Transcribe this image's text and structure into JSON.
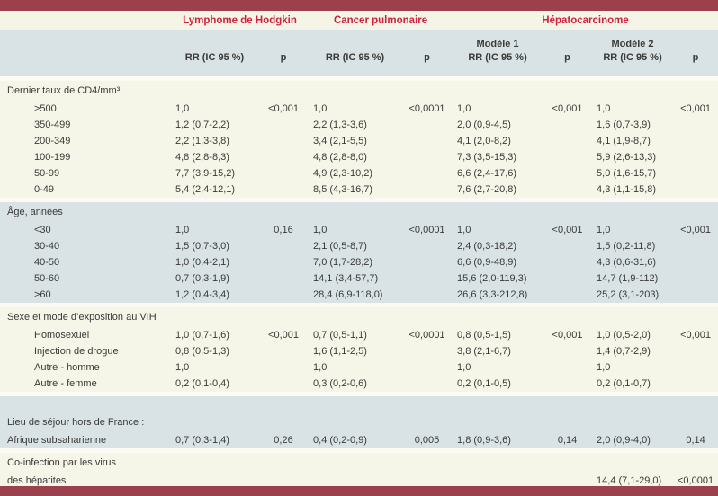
{
  "colors": {
    "border_bar": "#9c404e",
    "group_header_text": "#d01f3c",
    "section_cream": "#f6f6e8",
    "section_blue": "#d9e3e5",
    "body_text": "#3a3a38"
  },
  "table": {
    "header": {
      "groups": [
        "Lymphome de Hodgkin",
        "Cancer pulmonaire",
        "Hépatocarcinome"
      ],
      "model1": "Modèle 1",
      "model2": "Modèle 2",
      "rr": "RR (IC 95 %)",
      "p": "p"
    },
    "sections": [
      {
        "style": "cream",
        "header": "Dernier taux de CD4/mm³",
        "rows": [
          {
            "label": ">500",
            "indent": true,
            "c": [
              "1,0",
              "<0,001",
              "1,0",
              "<0,0001",
              "1,0",
              "<0,001",
              "1,0",
              "<0,001"
            ]
          },
          {
            "label": "350-499",
            "indent": true,
            "c": [
              "1,2 (0,7-2,2)",
              "",
              "2,2 (1,3-3,6)",
              "",
              "2,0 (0,9-4,5)",
              "",
              "1,6 (0,7-3,9)",
              ""
            ]
          },
          {
            "label": "200-349",
            "indent": true,
            "c": [
              "2,2 (1,3-3,8)",
              "",
              "3,4 (2,1-5,5)",
              "",
              "4,1 (2,0-8,2)",
              "",
              "4,1 (1,9-8,7)",
              ""
            ]
          },
          {
            "label": "100-199",
            "indent": true,
            "c": [
              "4,8 (2,8-8,3)",
              "",
              "4,8 (2,8-8,0)",
              "",
              "7,3 (3,5-15,3)",
              "",
              "5,9 (2,6-13,3)",
              ""
            ]
          },
          {
            "label": "50-99",
            "indent": true,
            "c": [
              "7,7 (3,9-15,2)",
              "",
              "4,9 (2,3-10,2)",
              "",
              "6,6 (2,4-17,6)",
              "",
              "5,0 (1,6-15,7)",
              ""
            ]
          },
          {
            "label": "0-49",
            "indent": true,
            "c": [
              "5,4 (2,4-12,1)",
              "",
              "8,5 (4,3-16,7)",
              "",
              "7,6 (2,7-20,8)",
              "",
              "4,3 (1,1-15,8)",
              ""
            ]
          }
        ]
      },
      {
        "style": "blue",
        "header": "Âge, années",
        "rows": [
          {
            "label": "<30",
            "indent": true,
            "c": [
              "1,0",
              "0,16",
              "1,0",
              "<0,0001",
              "1,0",
              "<0,001",
              "1,0",
              "<0,001"
            ]
          },
          {
            "label": "30-40",
            "indent": true,
            "c": [
              "1,5 (0,7-3,0)",
              "",
              "2,1 (0,5-8,7)",
              "",
              "2,4 (0,3-18,2)",
              "",
              "1,5 (0,2-11,8)",
              ""
            ]
          },
          {
            "label": "40-50",
            "indent": true,
            "c": [
              "1,0 (0,4-2,1)",
              "",
              "7,0 (1,7-28,2)",
              "",
              "6,6 (0,9-48,9)",
              "",
              "4,3 (0,6-31,6)",
              ""
            ]
          },
          {
            "label": "50-60",
            "indent": true,
            "c": [
              "0,7 (0,3-1,9)",
              "",
              "14,1 (3,4-57,7)",
              "",
              "15,6 (2,0-119,3)",
              "",
              "14,7 (1,9-112)",
              ""
            ]
          },
          {
            "label": ">60",
            "indent": true,
            "c": [
              "1,2 (0,4-3,4)",
              "",
              "28,4 (6,9-118,0)",
              "",
              "26,6 (3,3-212,8)",
              "",
              "25,2 (3,1-203)",
              ""
            ]
          }
        ]
      },
      {
        "style": "cream",
        "header": "Sexe et mode d’exposition au VIH",
        "rows": [
          {
            "label": "Homosexuel",
            "indent": true,
            "c": [
              "1,0 (0,7-1,6)",
              "<0,001",
              "0,7 (0,5-1,1)",
              "<0,0001",
              "0,8 (0,5-1,5)",
              "<0,001",
              "1,0 (0,5-2,0)",
              "<0,001"
            ]
          },
          {
            "label": "Injection de drogue",
            "indent": true,
            "c": [
              "0,8 (0,5-1,3)",
              "",
              "1,6 (1,1-2,5)",
              "",
              "3,8 (2,1-6,7)",
              "",
              "1,4 (0,7-2,9)",
              ""
            ]
          },
          {
            "label": "Autre - homme",
            "indent": true,
            "c": [
              "1,0",
              "",
              "1,0",
              "",
              "1,0",
              "",
              "1,0",
              ""
            ]
          },
          {
            "label": "Autre - femme",
            "indent": true,
            "c": [
              "0,2 (0,1-0,4)",
              "",
              "0,3 (0,2-0,6)",
              "",
              "0,2 (0,1-0,5)",
              "",
              "0,2 (0,1-0,7)",
              ""
            ]
          }
        ]
      },
      {
        "style": "blue",
        "pad_top": true,
        "header": "Lieu de séjour hors de France :",
        "rows": [
          {
            "label": "Afrique subsaharienne",
            "indent": false,
            "c": [
              "0,7 (0,3-1,4)",
              "0,26",
              "0,4 (0,2-0,9)",
              "0,005",
              "1,8 (0,9-3,6)",
              "0,14",
              "2,0 (0,9-4,0)",
              "0,14"
            ]
          }
        ]
      },
      {
        "style": "cream",
        "header": "Co-infection par les virus",
        "rows": [
          {
            "label": "des hépatites",
            "indent": false,
            "c": [
              "",
              "",
              "",
              "",
              "",
              "",
              "14,4 (7,1-29,0)",
              "<0,0001"
            ]
          }
        ]
      }
    ]
  }
}
